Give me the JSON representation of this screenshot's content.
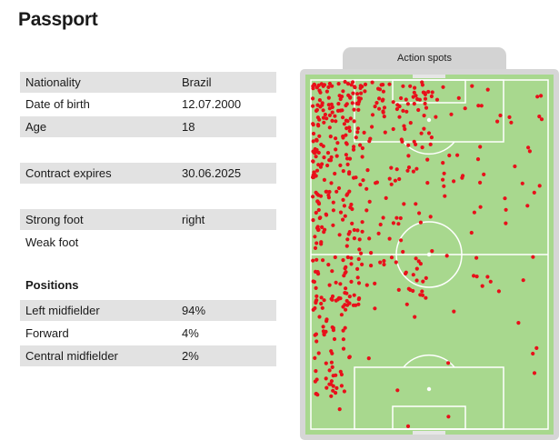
{
  "passport": {
    "title": "Passport",
    "nationality_label": "Nationality",
    "nationality_value": "Brazil",
    "dob_label": "Date of birth",
    "dob_value": "12.07.2000",
    "age_label": "Age",
    "age_value": "18",
    "contract_label": "Contract expires",
    "contract_value": "30.06.2025",
    "strong_foot_label": "Strong foot",
    "strong_foot_value": "right",
    "weak_foot_label": "Weak foot",
    "weak_foot_value": ""
  },
  "positions": {
    "heading": "Positions",
    "items": [
      {
        "label": "Left midfielder",
        "value": "94%"
      },
      {
        "label": "Forward",
        "value": "4%"
      },
      {
        "label": "Central midfielder",
        "value": "2%"
      }
    ]
  },
  "action_spots": {
    "label": "Action spots",
    "pitch_color": "#a8d88e",
    "line_color": "#ffffff",
    "dot_color": "#e8101a"
  }
}
